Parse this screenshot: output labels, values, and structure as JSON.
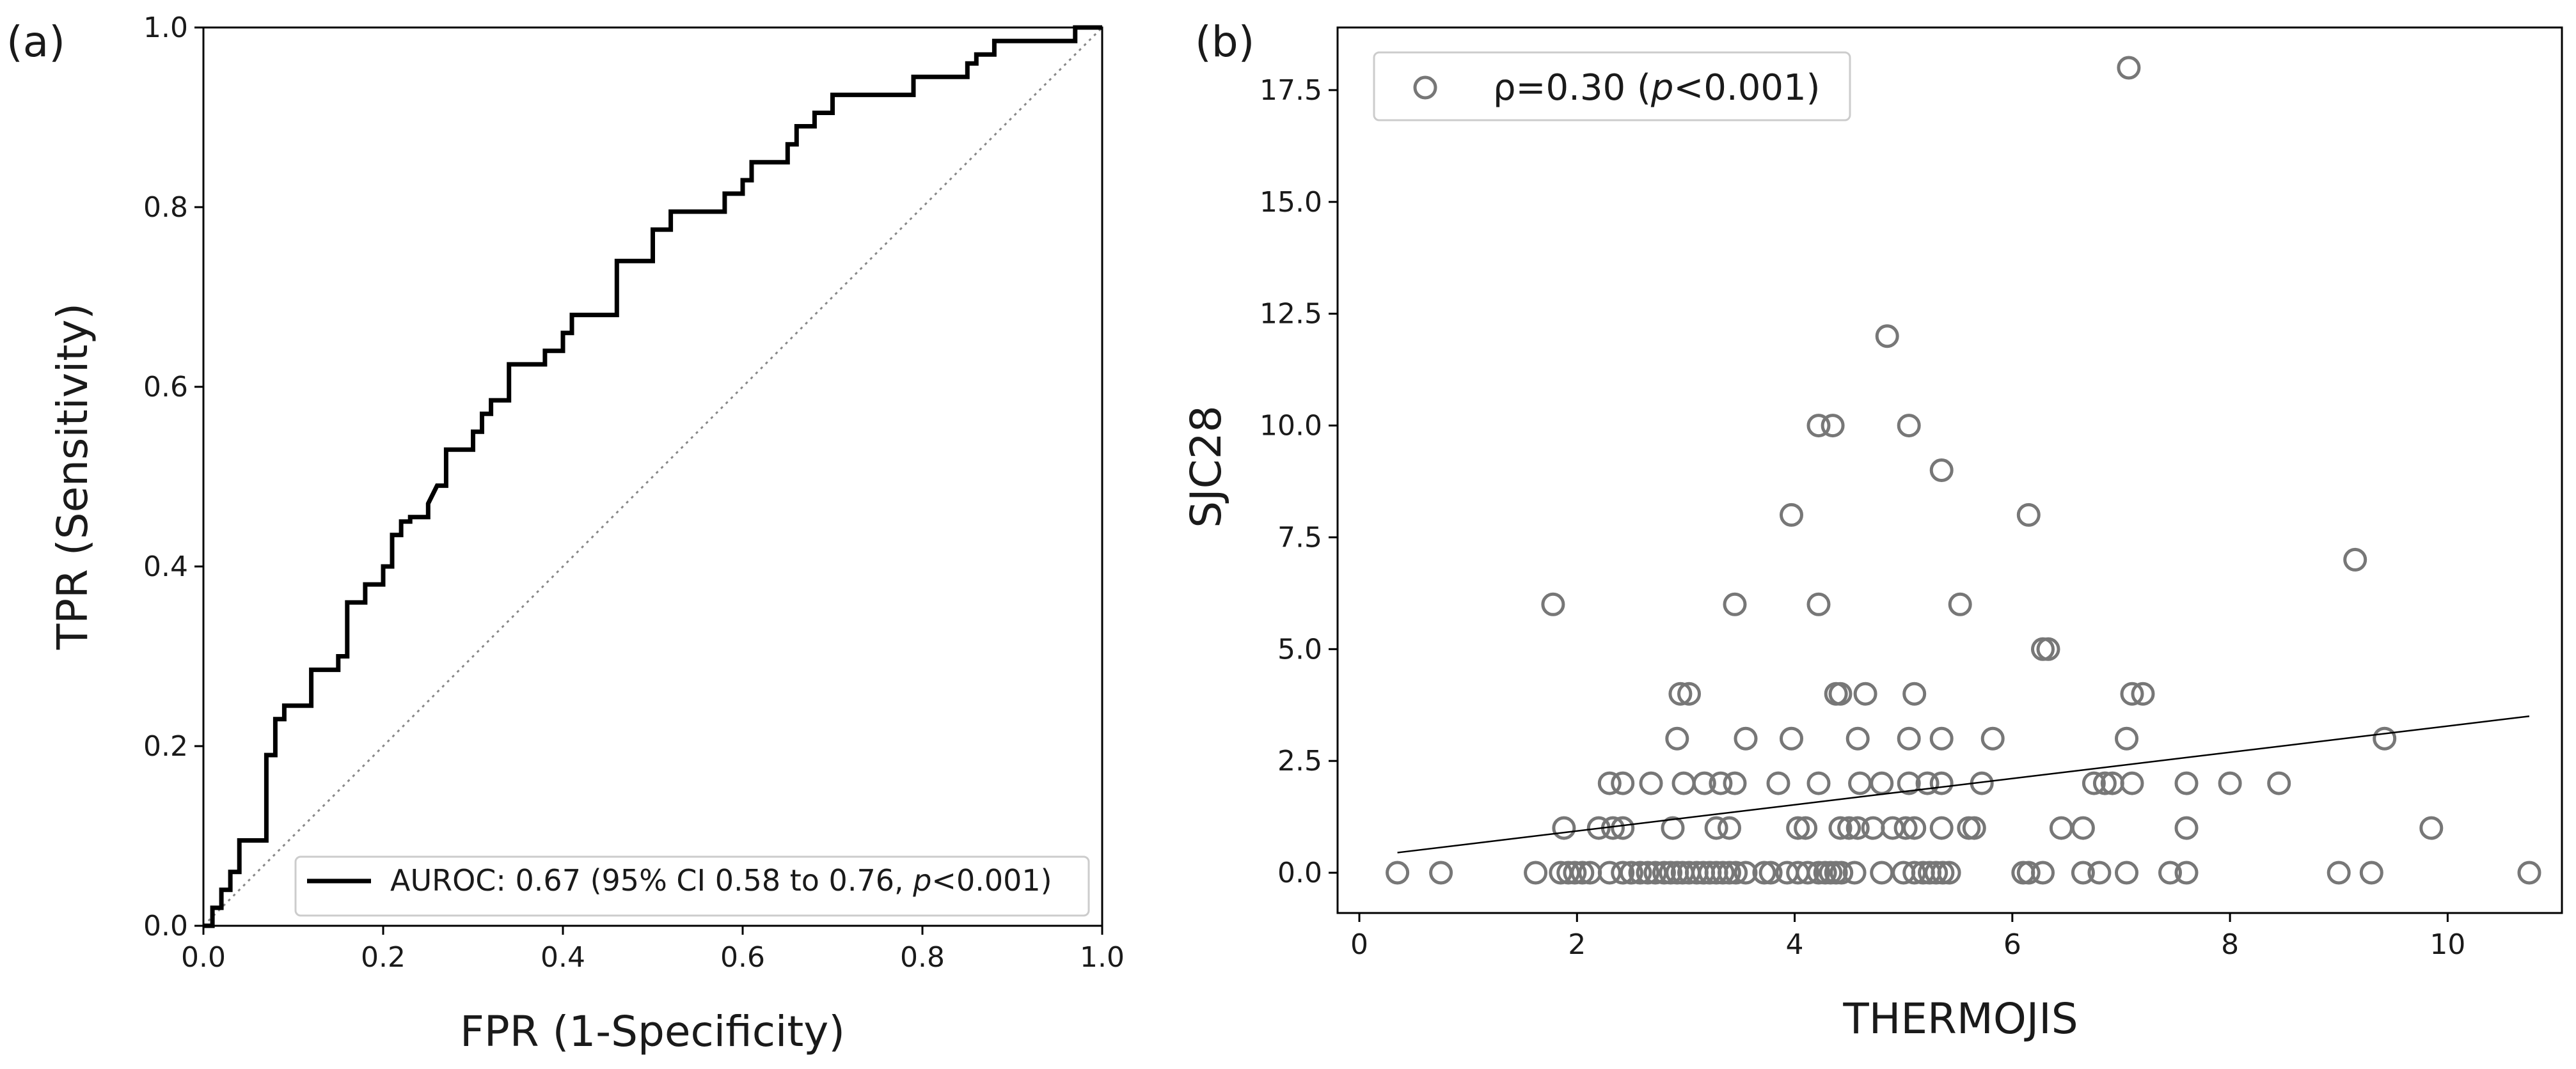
{
  "chart_data": [
    {
      "type": "line",
      "panel_label": "(a)",
      "title": "",
      "xlabel": "FPR (1-Specificity)",
      "ylabel": "TPR (Sensitivity)",
      "xlim": [
        0.0,
        1.0
      ],
      "ylim": [
        0.0,
        1.0
      ],
      "xticks": [
        0.0,
        0.2,
        0.4,
        0.6,
        0.8,
        1.0
      ],
      "yticks": [
        0.0,
        0.2,
        0.4,
        0.6,
        0.8,
        1.0
      ],
      "xtick_labels": [
        "0.0",
        "0.2",
        "0.4",
        "0.6",
        "0.8",
        "1.0"
      ],
      "ytick_labels": [
        "0.0",
        "0.2",
        "0.4",
        "0.6",
        "0.8",
        "1.0"
      ],
      "grid": false,
      "legend": {
        "placement": "lower-right",
        "text_main": "AUROC: 0.67 (95% CI 0.58 to 0.76, ",
        "text_p": "p",
        "text_tail": "<0.001)"
      },
      "series": [
        {
          "name": "ROC curve",
          "style": "step",
          "color": "#000000",
          "x": [
            0.0,
            0.01,
            0.01,
            0.02,
            0.02,
            0.03,
            0.03,
            0.04,
            0.04,
            0.07,
            0.07,
            0.08,
            0.08,
            0.09,
            0.09,
            0.12,
            0.12,
            0.15,
            0.15,
            0.16,
            0.16,
            0.18,
            0.18,
            0.2,
            0.2,
            0.21,
            0.21,
            0.22,
            0.22,
            0.23,
            0.23,
            0.25,
            0.25,
            0.26,
            0.27,
            0.27,
            0.3,
            0.3,
            0.31,
            0.31,
            0.32,
            0.32,
            0.34,
            0.34,
            0.38,
            0.38,
            0.4,
            0.4,
            0.41,
            0.41,
            0.46,
            0.46,
            0.5,
            0.5,
            0.52,
            0.52,
            0.58,
            0.58,
            0.6,
            0.6,
            0.61,
            0.61,
            0.65,
            0.65,
            0.66,
            0.66,
            0.68,
            0.68,
            0.7,
            0.7,
            0.71,
            0.71,
            0.79,
            0.79,
            0.85,
            0.85,
            0.86,
            0.86,
            0.88,
            0.88,
            0.97,
            0.97,
            1.0
          ],
          "y": [
            0.0,
            0.0,
            0.02,
            0.02,
            0.04,
            0.04,
            0.06,
            0.06,
            0.095,
            0.095,
            0.19,
            0.19,
            0.23,
            0.23,
            0.245,
            0.245,
            0.285,
            0.285,
            0.3,
            0.3,
            0.36,
            0.36,
            0.38,
            0.38,
            0.4,
            0.4,
            0.435,
            0.435,
            0.45,
            0.45,
            0.455,
            0.455,
            0.47,
            0.49,
            0.49,
            0.53,
            0.53,
            0.55,
            0.55,
            0.57,
            0.57,
            0.585,
            0.585,
            0.625,
            0.625,
            0.64,
            0.64,
            0.66,
            0.66,
            0.68,
            0.68,
            0.74,
            0.74,
            0.775,
            0.775,
            0.795,
            0.795,
            0.815,
            0.815,
            0.83,
            0.83,
            0.85,
            0.85,
            0.87,
            0.87,
            0.89,
            0.89,
            0.905,
            0.905,
            0.925,
            0.925,
            0.925,
            0.925,
            0.945,
            0.945,
            0.96,
            0.96,
            0.97,
            0.97,
            0.985,
            0.985,
            1.0,
            1.0
          ]
        },
        {
          "name": "chance line",
          "style": "dotted",
          "color": "#888888",
          "x": [
            0.0,
            1.0
          ],
          "y": [
            0.0,
            1.0
          ]
        }
      ]
    },
    {
      "type": "scatter",
      "panel_label": "(b)",
      "title": "",
      "xlabel": "THERMOJIS",
      "ylabel": "SJC28",
      "xlim": [
        -0.2,
        11.05
      ],
      "ylim": [
        -0.9,
        18.9
      ],
      "xticks": [
        0,
        2,
        4,
        6,
        8,
        10
      ],
      "yticks": [
        0.0,
        2.5,
        5.0,
        7.5,
        10.0,
        12.5,
        15.0,
        17.5
      ],
      "xtick_labels": [
        "0",
        "2",
        "4",
        "6",
        "8",
        "10"
      ],
      "ytick_labels": [
        "0.0",
        "2.5",
        "5.0",
        "7.5",
        "10.0",
        "12.5",
        "15.0",
        "17.5"
      ],
      "grid": false,
      "legend": {
        "placement": "top-left",
        "text_main": "ρ=0.30 (",
        "text_p": "p",
        "text_tail": "<0.001)"
      },
      "marker_color": "#777777",
      "fit_line": {
        "x": [
          0.35,
          10.75
        ],
        "y": [
          0.45,
          3.5
        ],
        "color": "#000000"
      },
      "points": [
        [
          0.35,
          0
        ],
        [
          0.75,
          0
        ],
        [
          1.62,
          0
        ],
        [
          1.85,
          0
        ],
        [
          1.92,
          0
        ],
        [
          1.98,
          0
        ],
        [
          2.05,
          0
        ],
        [
          2.12,
          0
        ],
        [
          2.3,
          0
        ],
        [
          2.42,
          0
        ],
        [
          2.5,
          0
        ],
        [
          2.58,
          0
        ],
        [
          2.65,
          0
        ],
        [
          2.72,
          0
        ],
        [
          2.8,
          0
        ],
        [
          2.86,
          0
        ],
        [
          2.92,
          0
        ],
        [
          2.97,
          0
        ],
        [
          3.03,
          0
        ],
        [
          3.1,
          0
        ],
        [
          3.16,
          0
        ],
        [
          3.22,
          0
        ],
        [
          3.28,
          0
        ],
        [
          3.34,
          0
        ],
        [
          3.4,
          0
        ],
        [
          3.46,
          0
        ],
        [
          3.55,
          0
        ],
        [
          3.72,
          0
        ],
        [
          3.78,
          0
        ],
        [
          3.93,
          0
        ],
        [
          4.03,
          0
        ],
        [
          4.12,
          0
        ],
        [
          4.22,
          0
        ],
        [
          4.28,
          0
        ],
        [
          4.33,
          0
        ],
        [
          4.38,
          0
        ],
        [
          4.43,
          0
        ],
        [
          4.55,
          0
        ],
        [
          4.8,
          0
        ],
        [
          5.0,
          0
        ],
        [
          5.1,
          0
        ],
        [
          5.18,
          0
        ],
        [
          5.24,
          0
        ],
        [
          5.3,
          0
        ],
        [
          5.36,
          0
        ],
        [
          5.42,
          0
        ],
        [
          6.1,
          0
        ],
        [
          6.15,
          0
        ],
        [
          6.28,
          0
        ],
        [
          6.65,
          0
        ],
        [
          6.8,
          0
        ],
        [
          7.05,
          0
        ],
        [
          7.45,
          0
        ],
        [
          7.6,
          0
        ],
        [
          9.0,
          0
        ],
        [
          9.3,
          0
        ],
        [
          10.75,
          0
        ],
        [
          1.88,
          1
        ],
        [
          2.2,
          1
        ],
        [
          2.33,
          1
        ],
        [
          2.42,
          1
        ],
        [
          2.88,
          1
        ],
        [
          3.28,
          1
        ],
        [
          3.4,
          1
        ],
        [
          4.03,
          1
        ],
        [
          4.1,
          1
        ],
        [
          4.42,
          1
        ],
        [
          4.5,
          1
        ],
        [
          4.58,
          1
        ],
        [
          4.72,
          1
        ],
        [
          4.9,
          1
        ],
        [
          5.02,
          1
        ],
        [
          5.1,
          1
        ],
        [
          5.35,
          1
        ],
        [
          5.6,
          1
        ],
        [
          5.65,
          1
        ],
        [
          6.45,
          1
        ],
        [
          6.65,
          1
        ],
        [
          7.6,
          1
        ],
        [
          9.85,
          1
        ],
        [
          2.3,
          2
        ],
        [
          2.42,
          2
        ],
        [
          2.68,
          2
        ],
        [
          2.98,
          2
        ],
        [
          3.17,
          2
        ],
        [
          3.32,
          2
        ],
        [
          3.45,
          2
        ],
        [
          3.85,
          2
        ],
        [
          4.22,
          2
        ],
        [
          4.6,
          2
        ],
        [
          4.8,
          2
        ],
        [
          5.05,
          2
        ],
        [
          5.22,
          2
        ],
        [
          5.35,
          2
        ],
        [
          5.72,
          2
        ],
        [
          6.75,
          2
        ],
        [
          6.85,
          2
        ],
        [
          6.92,
          2
        ],
        [
          7.1,
          2
        ],
        [
          7.6,
          2
        ],
        [
          8.0,
          2
        ],
        [
          8.45,
          2
        ],
        [
          2.92,
          3
        ],
        [
          3.55,
          3
        ],
        [
          3.97,
          3
        ],
        [
          4.58,
          3
        ],
        [
          5.05,
          3
        ],
        [
          5.35,
          3
        ],
        [
          5.82,
          3
        ],
        [
          7.05,
          3
        ],
        [
          9.42,
          3
        ],
        [
          2.95,
          4
        ],
        [
          3.03,
          4
        ],
        [
          4.38,
          4
        ],
        [
          4.42,
          4
        ],
        [
          4.65,
          4
        ],
        [
          5.1,
          4
        ],
        [
          7.1,
          4
        ],
        [
          7.2,
          4
        ],
        [
          6.28,
          5
        ],
        [
          6.33,
          5
        ],
        [
          1.78,
          6
        ],
        [
          3.45,
          6
        ],
        [
          4.22,
          6
        ],
        [
          5.52,
          6
        ],
        [
          9.15,
          7
        ],
        [
          3.97,
          8
        ],
        [
          6.15,
          8
        ],
        [
          5.35,
          9
        ],
        [
          4.22,
          10
        ],
        [
          4.35,
          10
        ],
        [
          5.05,
          10
        ],
        [
          4.85,
          12
        ],
        [
          7.07,
          18
        ]
      ]
    }
  ]
}
